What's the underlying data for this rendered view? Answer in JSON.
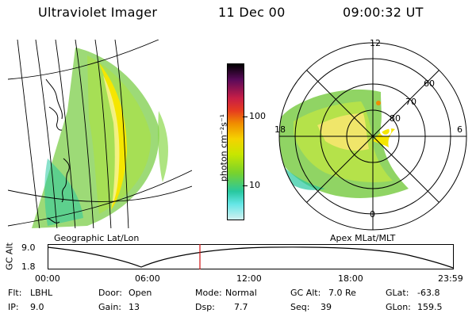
{
  "header": {
    "title": "Ultraviolet Imager",
    "date": "11 Dec 00",
    "time": "09:00:32 UT"
  },
  "left_panel": {
    "caption": "Geographic Lat/Lon"
  },
  "right_panel": {
    "caption": "Apex MLat/MLT",
    "mlt_labels": {
      "top": "12",
      "left": "18",
      "right": "6",
      "bottom": "0"
    },
    "lat_labels": [
      "60",
      "70",
      "80"
    ]
  },
  "colorbar": {
    "unit_label": "photon cm⁻²s⁻¹",
    "ticks": [
      "100",
      "10"
    ],
    "colors": [
      "#000000",
      "#5a0a5a",
      "#c81e46",
      "#e63c1e",
      "#f08c00",
      "#f5d200",
      "#c8e600",
      "#78d22d",
      "#28c8a0",
      "#64e6e6",
      "#d2f0f0"
    ]
  },
  "altitude_plot": {
    "ylabel": "GC Alt",
    "yticks": [
      "9.0",
      "1.8"
    ],
    "xticks": [
      "00:00",
      "06:00",
      "12:00",
      "18:00",
      "23:59"
    ],
    "current_time_fraction": 0.375
  },
  "info": {
    "flt_label": "Flt:",
    "flt_value": "LBHL",
    "door_label": "Door:",
    "door_value": "Open",
    "mode_label": "Mode:",
    "mode_value": "Normal",
    "gcalt_label": "GC Alt:",
    "gcalt_value": "7.0 Re",
    "glat_label": "GLat:",
    "glat_value": "-63.8",
    "ip_label": "IP:",
    "ip_value": "9.0",
    "gain_label": "Gain:",
    "gain_value": "13",
    "dsp_label": "Dsp:",
    "dsp_value": "7.7",
    "seq_label": "Seq:",
    "seq_value": "39",
    "glon_label": "GLon:",
    "glon_value": "159.5"
  }
}
